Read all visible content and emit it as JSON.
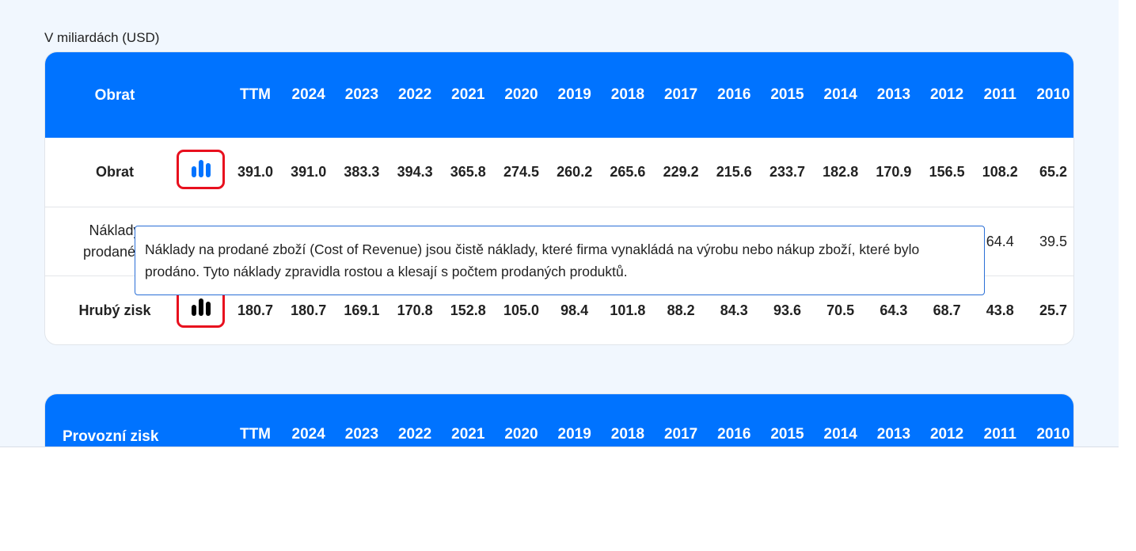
{
  "unit_label": "V miliardách (USD)",
  "columns": [
    "TTM",
    "2024",
    "2023",
    "2022",
    "2021",
    "2020",
    "2019",
    "2018",
    "2017",
    "2016",
    "2015",
    "2014",
    "2013",
    "2012",
    "2011",
    "2010"
  ],
  "table1": {
    "title": "Obrat",
    "rows": [
      {
        "label": "Obrat",
        "bold": true,
        "icon": "bar-chart-icon",
        "icon_color": "#0073ff",
        "values": [
          "391.0",
          "391.0",
          "383.3",
          "394.3",
          "365.8",
          "274.5",
          "260.2",
          "265.6",
          "229.2",
          "215.6",
          "233.7",
          "182.8",
          "170.9",
          "156.5",
          "108.2",
          "65.2"
        ]
      },
      {
        "label": "Náklady na prodané zboží",
        "label_visible": [
          "Náklady",
          "prodané z"
        ],
        "bold": false,
        "values": [
          "",
          "",
          "",
          "",
          "",
          "",
          "",
          "",
          "",
          "",
          "",
          "",
          "",
          "",
          "64.4",
          "39.5"
        ]
      },
      {
        "label": "Hrubý zisk",
        "bold": true,
        "icon": "bar-chart-icon",
        "icon_color": "#000000",
        "values": [
          "180.7",
          "180.7",
          "169.1",
          "170.8",
          "152.8",
          "105.0",
          "98.4",
          "101.8",
          "88.2",
          "84.3",
          "93.6",
          "70.5",
          "64.3",
          "68.7",
          "43.8",
          "25.7"
        ]
      }
    ]
  },
  "tooltip": "Náklady na prodané zboží (Cost of Revenue) jsou čistě náklady, které firma vynakládá na výrobu nebo nákup zboží, které bylo prodáno. Tyto náklady zpravidla rostou a klesají s počtem prodaných produktů.",
  "table2": {
    "title": "Provozní zisk"
  },
  "colors": {
    "header": "#0073ff",
    "highlight": "#e8101e",
    "background": "#f1f7fe"
  }
}
